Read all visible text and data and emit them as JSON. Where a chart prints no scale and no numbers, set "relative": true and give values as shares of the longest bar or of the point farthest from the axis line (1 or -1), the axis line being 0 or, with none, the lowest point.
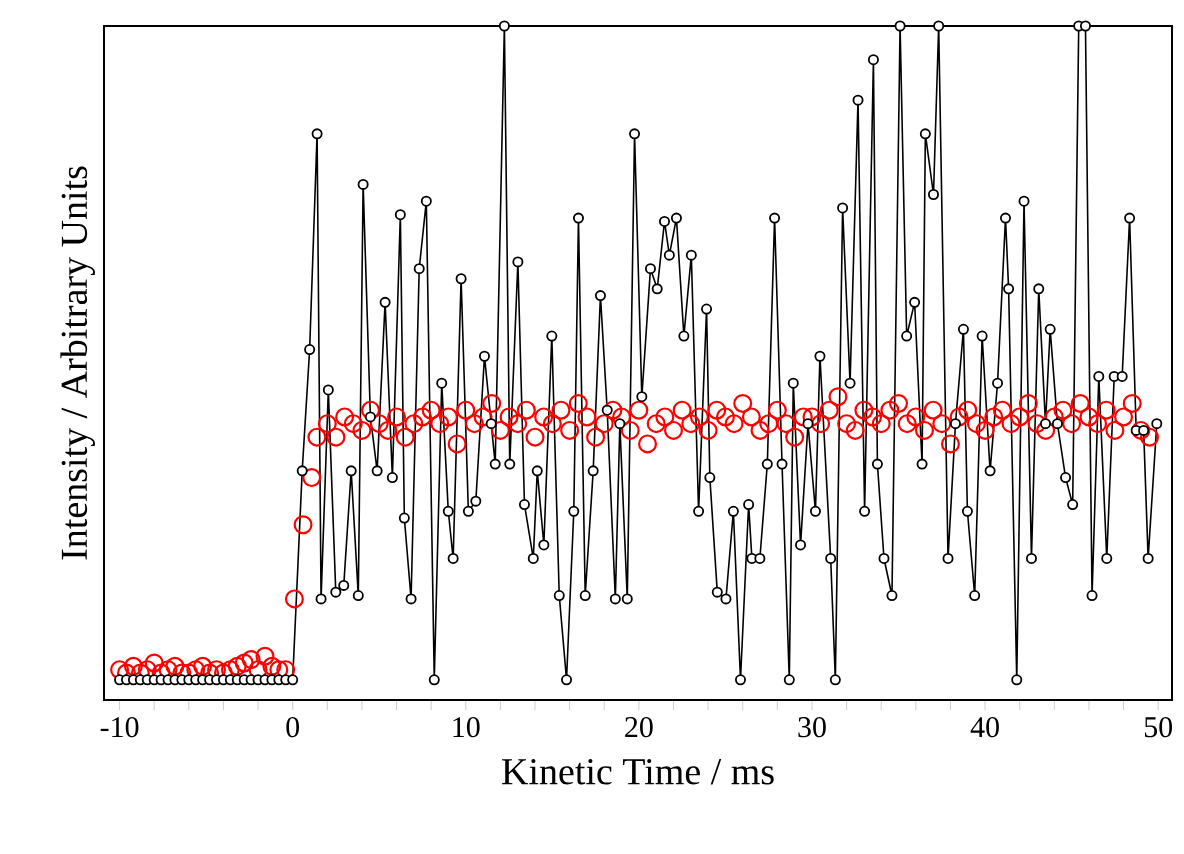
{
  "chart_data": {
    "type": "line",
    "relative": true,
    "xlabel": "Kinetic Time / ms",
    "ylabel": "Intensity / Arbitrary Units",
    "xlim": [
      -10.9,
      50.8
    ],
    "xticks": [
      -10,
      {
        "value": -8,
        "label": null
      },
      {
        "value": -6,
        "label": null
      },
      {
        "value": -4,
        "label": null
      },
      {
        "value": -2,
        "label": null
      },
      0,
      {
        "value": 2,
        "label": null
      },
      {
        "value": 4,
        "label": null
      },
      {
        "value": 6,
        "label": null
      },
      {
        "value": 8,
        "label": null
      },
      10,
      {
        "value": 12,
        "label": null
      },
      {
        "value": 14,
        "label": null
      },
      {
        "value": 16,
        "label": null
      },
      {
        "value": 18,
        "label": null
      },
      20,
      {
        "value": 22,
        "label": null
      },
      {
        "value": 24,
        "label": null
      },
      {
        "value": 26,
        "label": null
      },
      {
        "value": 28,
        "label": null
      },
      30,
      {
        "value": 32,
        "label": null
      },
      {
        "value": 34,
        "label": null
      },
      {
        "value": 36,
        "label": null
      },
      {
        "value": 38,
        "label": null
      },
      40,
      {
        "value": 42,
        "label": null
      },
      {
        "value": 44,
        "label": null
      },
      {
        "value": 46,
        "label": null
      },
      {
        "value": 48,
        "label": null
      },
      50
    ],
    "series": [
      {
        "type": "scatter",
        "color": "#ff0000",
        "marker": "circle",
        "x": [
          -10,
          -9.6,
          -9.2,
          -8.8,
          -8.4,
          -8,
          -7.6,
          -7.2,
          -6.8,
          -6.4,
          -6,
          -5.6,
          -5.2,
          -4.8,
          -4.4,
          -4,
          -3.6,
          -3.2,
          -2.8,
          -2.4,
          -2,
          -1.6,
          -1.2,
          -0.8,
          -0.4,
          0.1,
          0.6,
          1.1,
          1.4,
          2,
          2.5,
          3,
          3.5,
          4,
          4.5,
          5,
          5.5,
          6,
          6.5,
          7,
          7.5,
          8,
          8.5,
          9,
          9.5,
          10,
          10.5,
          11,
          11.5,
          12,
          12.5,
          13,
          13.5,
          14,
          14.5,
          15,
          15.5,
          16,
          16.5,
          17,
          17.5,
          18,
          18.5,
          19,
          19.5,
          20,
          20.5,
          21,
          21.5,
          22,
          22.5,
          23,
          23.5,
          24,
          24.5,
          25,
          25.5,
          26,
          26.5,
          27,
          27.5,
          28,
          28.5,
          29,
          29.5,
          30,
          30.5,
          31,
          31.5,
          32,
          32.5,
          33,
          33.5,
          34,
          34.5,
          35,
          35.5,
          36,
          36.5,
          37,
          37.5,
          38,
          38.5,
          39,
          39.5,
          40,
          40.5,
          41,
          41.5,
          42,
          42.5,
          43,
          43.5,
          44,
          44.5,
          45,
          45.5,
          46,
          46.5,
          47,
          47.5,
          48,
          48.5,
          49,
          49.5
        ],
        "values": [
          0.045,
          0.04,
          0.05,
          0.04,
          0.045,
          0.055,
          0.04,
          0.045,
          0.05,
          0.04,
          0.04,
          0.045,
          0.05,
          0.04,
          0.045,
          0.04,
          0.045,
          0.05,
          0.055,
          0.06,
          0.045,
          0.065,
          0.05,
          0.045,
          0.045,
          0.15,
          0.26,
          0.33,
          0.39,
          0.41,
          0.39,
          0.42,
          0.41,
          0.4,
          0.43,
          0.41,
          0.4,
          0.42,
          0.39,
          0.41,
          0.42,
          0.43,
          0.41,
          0.42,
          0.38,
          0.43,
          0.41,
          0.42,
          0.44,
          0.4,
          0.42,
          0.41,
          0.43,
          0.39,
          0.42,
          0.41,
          0.43,
          0.4,
          0.44,
          0.42,
          0.39,
          0.41,
          0.43,
          0.42,
          0.4,
          0.43,
          0.38,
          0.41,
          0.42,
          0.4,
          0.43,
          0.41,
          0.42,
          0.4,
          0.43,
          0.42,
          0.41,
          0.44,
          0.42,
          0.4,
          0.41,
          0.43,
          0.41,
          0.39,
          0.42,
          0.42,
          0.41,
          0.43,
          0.45,
          0.41,
          0.4,
          0.43,
          0.42,
          0.41,
          0.43,
          0.44,
          0.41,
          0.42,
          0.4,
          0.43,
          0.41,
          0.38,
          0.42,
          0.43,
          0.41,
          0.4,
          0.42,
          0.43,
          0.41,
          0.42,
          0.44,
          0.41,
          0.4,
          0.42,
          0.43,
          0.41,
          0.44,
          0.42,
          0.41,
          0.43,
          0.4,
          0.42,
          0.44,
          0.4,
          0.39
        ]
      },
      {
        "color": "#000000",
        "marker": "circle",
        "x": [
          -10,
          -9.6,
          -9.2,
          -8.8,
          -8.4,
          -8,
          -7.6,
          -7.2,
          -6.8,
          -6.4,
          -6,
          -5.6,
          -5.2,
          -4.8,
          -4.4,
          -4,
          -3.6,
          -3.2,
          -2.8,
          -2.4,
          -2,
          -1.6,
          -1.2,
          -0.8,
          -0.4,
          0,
          0.55,
          0.98,
          1.41,
          1.64,
          2.06,
          2.49,
          2.95,
          3.38,
          3.79,
          4.07,
          4.49,
          4.88,
          5.34,
          5.76,
          6.22,
          6.45,
          6.84,
          7.31,
          7.72,
          8.18,
          8.61,
          8.99,
          9.27,
          9.73,
          10.15,
          10.58,
          11.08,
          11.47,
          11.7,
          12.23,
          12.54,
          13.01,
          13.39,
          13.9,
          14.13,
          14.51,
          14.97,
          15.4,
          15.82,
          16.24,
          16.51,
          16.9,
          17.36,
          17.78,
          18.17,
          18.64,
          18.9,
          19.33,
          19.75,
          20.17,
          20.67,
          21.06,
          21.48,
          21.76,
          22.17,
          22.6,
          23.03,
          23.45,
          23.91,
          24.1,
          24.53,
          25.03,
          25.46,
          25.87,
          26.34,
          26.53,
          26.99,
          27.42,
          27.84,
          28.27,
          28.69,
          28.92,
          29.34,
          29.77,
          30.2,
          30.46,
          31.08,
          31.35,
          31.77,
          32.2,
          32.66,
          33.04,
          33.55,
          33.78,
          34.16,
          34.62,
          35.09,
          35.47,
          35.93,
          36.36,
          36.55,
          37.02,
          37.32,
          37.86,
          38.29,
          38.75,
          38.98,
          39.4,
          39.83,
          40.29,
          40.72,
          41.18,
          41.36,
          41.83,
          42.25,
          42.68,
          43.1,
          43.49,
          43.76,
          44.18,
          44.65,
          45.06,
          45.41,
          45.8,
          46.18,
          46.57,
          47.03,
          47.46,
          47.92,
          48.35,
          48.73,
          49.16,
          49.42,
          49.92
        ],
        "values": [
          0.03,
          0.03,
          0.03,
          0.03,
          0.03,
          0.03,
          0.03,
          0.03,
          0.03,
          0.03,
          0.03,
          0.03,
          0.03,
          0.03,
          0.03,
          0.03,
          0.03,
          0.03,
          0.03,
          0.03,
          0.03,
          0.03,
          0.03,
          0.03,
          0.03,
          0.03,
          0.34,
          0.52,
          0.84,
          0.15,
          0.46,
          0.16,
          0.17,
          0.34,
          0.155,
          0.765,
          0.42,
          0.34,
          0.59,
          0.33,
          0.72,
          0.27,
          0.15,
          0.64,
          0.74,
          0.03,
          0.47,
          0.28,
          0.21,
          0.625,
          0.28,
          0.295,
          0.51,
          0.41,
          0.35,
          1.0,
          0.35,
          0.65,
          0.29,
          0.21,
          0.34,
          0.23,
          0.54,
          0.155,
          0.03,
          0.28,
          0.715,
          0.155,
          0.34,
          0.6,
          0.43,
          0.15,
          0.41,
          0.15,
          0.84,
          0.45,
          0.64,
          0.61,
          0.71,
          0.66,
          0.715,
          0.54,
          0.66,
          0.28,
          0.58,
          0.33,
          0.16,
          0.15,
          0.28,
          0.03,
          0.29,
          0.21,
          0.21,
          0.35,
          0.715,
          0.35,
          0.03,
          0.47,
          0.23,
          0.41,
          0.28,
          0.51,
          0.21,
          0.03,
          0.73,
          0.47,
          0.89,
          0.28,
          0.95,
          0.35,
          0.21,
          0.155,
          1.0,
          0.54,
          0.59,
          0.35,
          0.84,
          0.75,
          1.0,
          0.21,
          0.41,
          0.55,
          0.28,
          0.155,
          0.54,
          0.34,
          0.47,
          0.715,
          0.61,
          0.03,
          0.74,
          0.21,
          0.61,
          0.41,
          0.55,
          0.41,
          0.33,
          0.29,
          1.0,
          1.0,
          0.155,
          0.48,
          0.21,
          0.48,
          0.48,
          0.715,
          0.4,
          0.4,
          0.21,
          0.41
        ]
      }
    ]
  }
}
